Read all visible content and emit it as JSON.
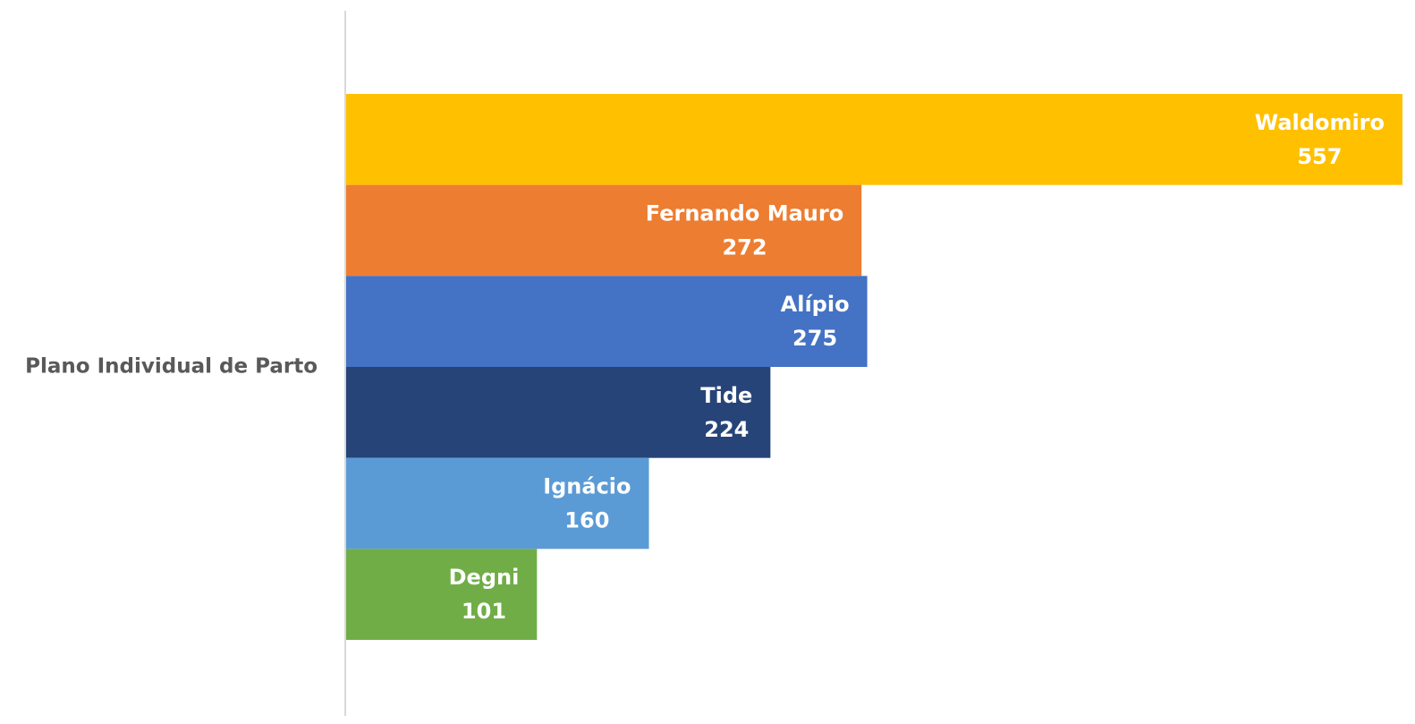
{
  "chart_data": {
    "type": "bar",
    "orientation": "horizontal",
    "categories": [
      "Plano Individual de Parto"
    ],
    "series": [
      {
        "name": "Waldomiro",
        "color": "#FFC000",
        "values": [
          557
        ]
      },
      {
        "name": "Fernando Mauro",
        "color": "#ED7D31",
        "values": [
          272
        ]
      },
      {
        "name": "Alípio",
        "color": "#4472C4",
        "values": [
          275
        ]
      },
      {
        "name": "Tide",
        "color": "#264478",
        "values": [
          224
        ]
      },
      {
        "name": "Ignácio",
        "color": "#5B9BD5",
        "values": [
          160
        ]
      },
      {
        "name": "Degni",
        "color": "#70AD47",
        "values": [
          101
        ]
      }
    ],
    "xlim": [
      0,
      557
    ]
  }
}
